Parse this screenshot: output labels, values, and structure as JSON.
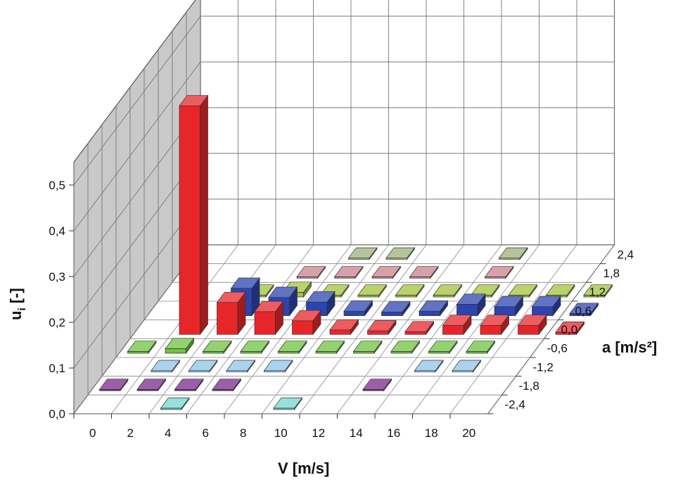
{
  "chart_data": {
    "type": "bar3d",
    "xlabel": "V [m/s]",
    "zlabel": "a [m/s²]",
    "ylabel": "u_i [-]",
    "x_ticks": [
      "0",
      "2",
      "4",
      "6",
      "8",
      "10",
      "12",
      "14",
      "16",
      "18",
      "20"
    ],
    "z_ticks": [
      "-2,4",
      "-1,8",
      "-1,2",
      "-0,6",
      "0,0",
      "0,6",
      "1,2",
      "1,8",
      "2,4"
    ],
    "y_ticks": [
      "0,0",
      "0,1",
      "0,2",
      "0,3",
      "0,4",
      "0,5"
    ],
    "ylim": [
      0,
      0.5
    ],
    "series_colors": {
      "-2,4": "#72d8cf",
      "-1,8": "#7a2a8c",
      "-1,2": "#8fc4e8",
      "-0,6": "#6cc43c",
      "0,0": "#e8262a",
      "0,6": "#2c44b0",
      "1,2": "#a2c33a",
      "1,8": "#c8828c",
      "2,4": "#9fb07a"
    },
    "bars": [
      {
        "v": 2,
        "a": "0,0",
        "u": 0.5
      },
      {
        "v": 4,
        "a": "0,0",
        "u": 0.07
      },
      {
        "v": 6,
        "a": "0,0",
        "u": 0.05
      },
      {
        "v": 8,
        "a": "0,0",
        "u": 0.03
      },
      {
        "v": 10,
        "a": "0,0",
        "u": 0.01
      },
      {
        "v": 12,
        "a": "0,0",
        "u": 0.008
      },
      {
        "v": 14,
        "a": "0,0",
        "u": 0.006
      },
      {
        "v": 16,
        "a": "0,0",
        "u": 0.02
      },
      {
        "v": 18,
        "a": "0,0",
        "u": 0.02
      },
      {
        "v": 20,
        "a": "0,0",
        "u": 0.02
      },
      {
        "v": 22,
        "a": "0,0",
        "u": 0.005
      },
      {
        "v": 4,
        "a": "0,6",
        "u": 0.06
      },
      {
        "v": 6,
        "a": "0,6",
        "u": 0.04
      },
      {
        "v": 8,
        "a": "0,6",
        "u": 0.03
      },
      {
        "v": 10,
        "a": "0,6",
        "u": 0.01
      },
      {
        "v": 12,
        "a": "0,6",
        "u": 0.008
      },
      {
        "v": 14,
        "a": "0,6",
        "u": 0.01
      },
      {
        "v": 16,
        "a": "0,6",
        "u": 0.025
      },
      {
        "v": 18,
        "a": "0,6",
        "u": 0.02
      },
      {
        "v": 20,
        "a": "0,6",
        "u": 0.02
      },
      {
        "v": 22,
        "a": "0,6",
        "u": 0.005
      },
      {
        "v": 4,
        "a": "1,2",
        "u": 0.004
      },
      {
        "v": 6,
        "a": "1,2",
        "u": 0.01
      },
      {
        "v": 8,
        "a": "1,2",
        "u": 0.004
      },
      {
        "v": 10,
        "a": "1,2",
        "u": 0.004
      },
      {
        "v": 12,
        "a": "1,2",
        "u": 0.004
      },
      {
        "v": 14,
        "a": "1,2",
        "u": 0.004
      },
      {
        "v": 16,
        "a": "1,2",
        "u": 0.004
      },
      {
        "v": 18,
        "a": "1,2",
        "u": 0.004
      },
      {
        "v": 20,
        "a": "1,2",
        "u": 0.004
      },
      {
        "v": 22,
        "a": "1,2",
        "u": 0.004
      },
      {
        "v": 6,
        "a": "1,8",
        "u": 0.003
      },
      {
        "v": 8,
        "a": "1,8",
        "u": 0.003
      },
      {
        "v": 10,
        "a": "1,8",
        "u": 0.003
      },
      {
        "v": 12,
        "a": "1,8",
        "u": 0.003
      },
      {
        "v": 16,
        "a": "1,8",
        "u": 0.003
      },
      {
        "v": 8,
        "a": "2,4",
        "u": 0.003
      },
      {
        "v": 10,
        "a": "2,4",
        "u": 0.003
      },
      {
        "v": 16,
        "a": "2,4",
        "u": 0.003
      },
      {
        "v": 0,
        "a": "-0,6",
        "u": 0.004
      },
      {
        "v": 2,
        "a": "-0,6",
        "u": 0.01
      },
      {
        "v": 4,
        "a": "-0,6",
        "u": 0.004
      },
      {
        "v": 6,
        "a": "-0,6",
        "u": 0.004
      },
      {
        "v": 8,
        "a": "-0,6",
        "u": 0.004
      },
      {
        "v": 10,
        "a": "-0,6",
        "u": 0.004
      },
      {
        "v": 12,
        "a": "-0,6",
        "u": 0.004
      },
      {
        "v": 14,
        "a": "-0,6",
        "u": 0.004
      },
      {
        "v": 16,
        "a": "-0,6",
        "u": 0.004
      },
      {
        "v": 18,
        "a": "-0,6",
        "u": 0.004
      },
      {
        "v": 2,
        "a": "-1,2",
        "u": 0.003
      },
      {
        "v": 4,
        "a": "-1,2",
        "u": 0.003
      },
      {
        "v": 6,
        "a": "-1,2",
        "u": 0.003
      },
      {
        "v": 8,
        "a": "-1,2",
        "u": 0.003
      },
      {
        "v": 16,
        "a": "-1,2",
        "u": 0.003
      },
      {
        "v": 18,
        "a": "-1,2",
        "u": 0.003
      },
      {
        "v": 0,
        "a": "-1,8",
        "u": 0.003
      },
      {
        "v": 2,
        "a": "-1,8",
        "u": 0.003
      },
      {
        "v": 4,
        "a": "-1,8",
        "u": 0.003
      },
      {
        "v": 6,
        "a": "-1,8",
        "u": 0.003
      },
      {
        "v": 14,
        "a": "-1,8",
        "u": 0.003
      },
      {
        "v": 4,
        "a": "-2,4",
        "u": 0.003
      },
      {
        "v": 10,
        "a": "-2,4",
        "u": 0.003
      }
    ]
  }
}
